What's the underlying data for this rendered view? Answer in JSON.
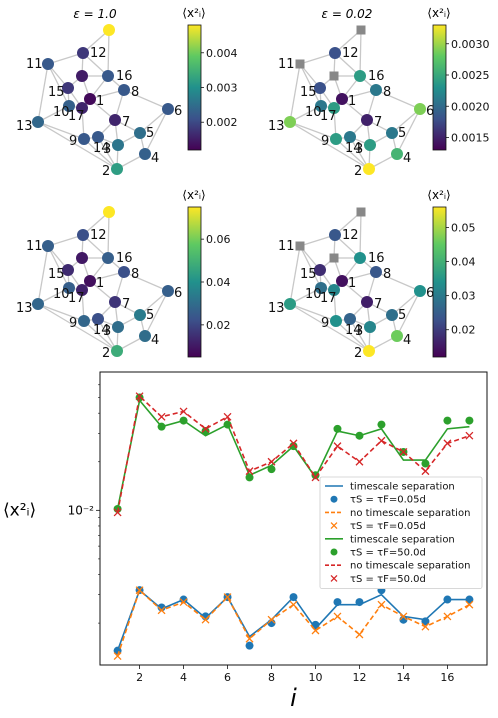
{
  "chart_data": [
    {
      "type": "graph",
      "panel": "top-left",
      "annotation": "ε = 1.0",
      "colorbar_label": "⟨x²ᵢ⟩",
      "colorbar_range": [
        0.0012,
        0.0048
      ],
      "colorbar_ticks": [
        "0.002",
        "0.003",
        "0.004"
      ],
      "node_values": {
        "1": 0.0013,
        "2": 0.0032,
        "3": 0.0026,
        "4": 0.0023,
        "5": 0.0025,
        "6": 0.0022,
        "7": 0.0016,
        "8": 0.0022,
        "9": 0.0022,
        "10": 0.0023,
        "11": 0.0022,
        "12": 0.0018,
        "13": 0.0024,
        "14": 0.0022,
        "15": 0.0018,
        "16": 0.0022,
        "17": 0.0016,
        "18": 0.0015,
        "19": 0.0048
      }
    },
    {
      "type": "graph",
      "panel": "top-right",
      "annotation": "ε = 0.02",
      "colorbar_label": "⟨x²ᵢ⟩",
      "colorbar_range": [
        0.0013,
        0.0033
      ],
      "colorbar_ticks": [
        "0.0015",
        "0.0020",
        "0.0025",
        "0.0030"
      ],
      "node_values": {
        "1": 0.0014,
        "2": 0.0033,
        "3": 0.0024,
        "4": 0.0026,
        "5": 0.0021,
        "6": 0.0029,
        "7": 0.0015,
        "8": 0.0021,
        "9": 0.0024,
        "10": 0.0021,
        "11": 0.0024,
        "12": 0.0018,
        "13": 0.0029,
        "14": 0.0021,
        "15": 0.0018,
        "16": 0.0024,
        "17": 0.0024,
        "18": 0.0018,
        "19": 0.0024
      }
    },
    {
      "type": "graph",
      "panel": "bottom-left",
      "annotation": "",
      "colorbar_label": "⟨x²ᵢ⟩",
      "colorbar_range": [
        0.005,
        0.075
      ],
      "colorbar_ticks": [
        "0.02",
        "0.04",
        "0.06"
      ],
      "node_values": {
        "1": 0.008,
        "2": 0.048,
        "3": 0.03,
        "4": 0.03,
        "5": 0.034,
        "6": 0.026,
        "7": 0.016,
        "8": 0.022,
        "9": 0.028,
        "10": 0.026,
        "11": 0.026,
        "12": 0.022,
        "13": 0.028,
        "14": 0.022,
        "15": 0.014,
        "16": 0.026,
        "17": 0.012,
        "18": 0.01,
        "19": 0.075
      }
    },
    {
      "type": "graph",
      "panel": "bottom-right",
      "annotation": "",
      "colorbar_label": "⟨x²ᵢ⟩",
      "colorbar_range": [
        0.012,
        0.056
      ],
      "colorbar_ticks": [
        "0.02",
        "0.03",
        "0.04",
        "0.05"
      ],
      "node_values": {
        "1": 0.014,
        "2": 0.056,
        "3": 0.032,
        "4": 0.046,
        "5": 0.028,
        "6": 0.034,
        "7": 0.016,
        "8": 0.024,
        "9": 0.034,
        "10": 0.028,
        "11": 0.028,
        "12": 0.024,
        "13": 0.036,
        "14": 0.026,
        "15": 0.018,
        "16": 0.034,
        "17": 0.032,
        "18": 0.02,
        "19": 0.03
      }
    },
    {
      "type": "line",
      "panel": "bottom",
      "xlabel": "i",
      "ylabel": "⟨x²ᵢ⟩",
      "y_scale": "log",
      "x_ticks": [
        2,
        4,
        6,
        8,
        10,
        12,
        14,
        16
      ],
      "y_tick_label": "10⁻²",
      "y_tick_value": 0.01,
      "ylim": [
        0.0011,
        0.072
      ],
      "xlim": [
        0.2,
        17.8
      ],
      "legend": "center-right",
      "x": [
        1,
        2,
        3,
        4,
        5,
        6,
        7,
        8,
        9,
        10,
        11,
        12,
        13,
        14,
        15,
        16,
        17
      ],
      "series": [
        {
          "name": "timescale separation",
          "style": "line",
          "color": "#1f77b4",
          "values": [
            0.00135,
            0.0032,
            0.00245,
            0.0028,
            0.00215,
            0.0029,
            0.00165,
            0.0021,
            0.0029,
            0.00185,
            0.0026,
            0.0026,
            0.003,
            0.0022,
            0.0021,
            0.0028,
            0.0028
          ]
        },
        {
          "name": "τS = τF=0.05d",
          "style": "dots",
          "color": "#1f77b4",
          "values": [
            0.00135,
            0.0032,
            0.0025,
            0.0028,
            0.0022,
            0.0029,
            0.00145,
            0.002,
            0.0029,
            0.00195,
            0.0027,
            0.0027,
            0.0032,
            0.0021,
            0.00205,
            0.0028,
            0.0028
          ]
        },
        {
          "name": "no timescale separation",
          "style": "dashed",
          "color": "#ff7f0e",
          "values": [
            0.00125,
            0.0032,
            0.0024,
            0.0027,
            0.0021,
            0.0029,
            0.0016,
            0.0021,
            0.0026,
            0.0018,
            0.0022,
            0.0017,
            0.0026,
            0.0022,
            0.0019,
            0.0022,
            0.0026
          ]
        },
        {
          "name": "τS = τF=0.05d",
          "style": "x",
          "color": "#ff7f0e",
          "values": [
            0.00125,
            0.0032,
            0.0024,
            0.0027,
            0.0021,
            0.0029,
            0.0016,
            0.0021,
            0.0026,
            0.0018,
            0.0022,
            0.0017,
            0.0026,
            0.0022,
            0.0019,
            0.0022,
            0.0026
          ]
        },
        {
          "name": "timescale separation",
          "style": "line",
          "color": "#2ca02c",
          "values": [
            0.0102,
            0.048,
            0.033,
            0.036,
            0.029,
            0.034,
            0.0165,
            0.019,
            0.025,
            0.016,
            0.031,
            0.029,
            0.032,
            0.0205,
            0.0205,
            0.032,
            0.033
          ]
        },
        {
          "name": "τS = τF=50.0d",
          "style": "dots",
          "color": "#2ca02c",
          "values": [
            0.0102,
            0.05,
            0.033,
            0.036,
            0.031,
            0.034,
            0.016,
            0.018,
            0.025,
            0.0165,
            0.032,
            0.029,
            0.034,
            0.023,
            0.0195,
            0.036,
            0.036
          ]
        },
        {
          "name": "no timescale separation",
          "style": "dashed",
          "color": "#d62728",
          "values": [
            0.0097,
            0.051,
            0.038,
            0.041,
            0.032,
            0.038,
            0.0175,
            0.02,
            0.026,
            0.016,
            0.025,
            0.02,
            0.027,
            0.023,
            0.0175,
            0.026,
            0.029
          ]
        },
        {
          "name": "τS = τF=50.0d",
          "style": "x",
          "color": "#d62728",
          "values": [
            0.0097,
            0.051,
            0.038,
            0.041,
            0.032,
            0.038,
            0.0175,
            0.02,
            0.026,
            0.016,
            0.025,
            0.02,
            0.027,
            0.023,
            0.0175,
            0.026,
            0.029
          ]
        }
      ]
    }
  ]
}
